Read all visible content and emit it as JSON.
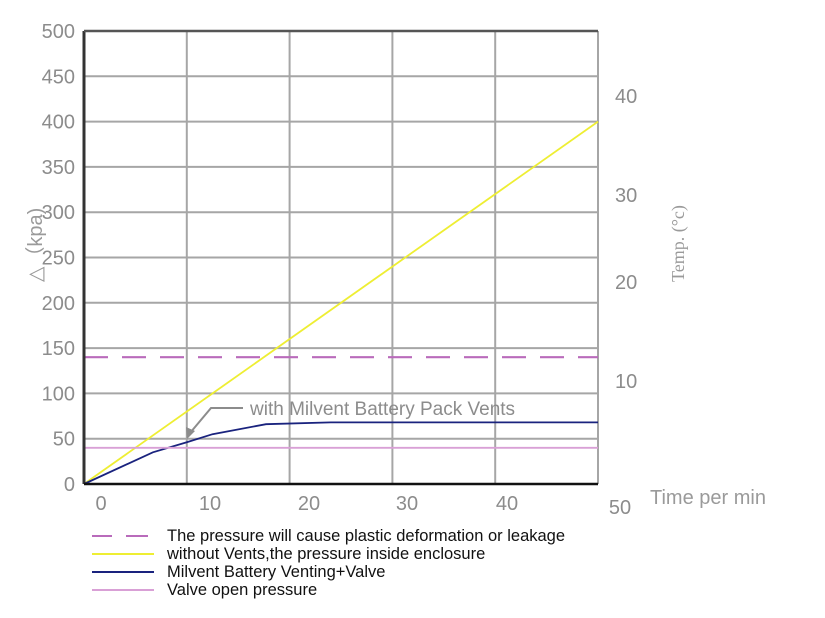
{
  "chart_data": {
    "type": "line",
    "title": "",
    "xlabel": "Time per min",
    "ylabel": "△（kpa)",
    "y2label": "Temp. (°c)",
    "xlim": [
      0,
      50
    ],
    "ylim": [
      0,
      500
    ],
    "x_ticks": [
      "0",
      "10",
      "20",
      "30",
      "40",
      "50"
    ],
    "y_ticks": [
      "0",
      "50",
      "100",
      "150",
      "200",
      "250",
      "300",
      "350",
      "400",
      "450",
      "500"
    ],
    "y2_ticks": [
      "10",
      "20",
      "30",
      "40"
    ],
    "grid": true,
    "legend_position": "bottom",
    "series": [
      {
        "name": "The pressure will cause plastic deformation or leakage",
        "style": "dashed",
        "color": "#b96bbb",
        "x": [
          0,
          50
        ],
        "values": [
          140,
          140
        ]
      },
      {
        "name": "without Vents,the pressure inside enclosure",
        "style": "solid",
        "color": "#eeee33",
        "x": [
          0,
          50
        ],
        "values": [
          0,
          400
        ]
      },
      {
        "name": "Milvent Battery Venting+Valve",
        "style": "solid",
        "color": "#1a237e",
        "x": [
          0,
          6.7,
          10,
          12.5,
          17.7,
          24,
          50
        ],
        "values": [
          0,
          35,
          46,
          55,
          66,
          68,
          68
        ]
      },
      {
        "name": "Valve open pressure",
        "style": "solid",
        "color": "#d9a0d6",
        "x": [
          0,
          50
        ],
        "values": [
          40,
          40
        ]
      }
    ],
    "annotations": [
      {
        "text": "with Milvent Battery Pack Vents",
        "x": 10,
        "y": 50,
        "arrow": true
      }
    ]
  },
  "labels": {
    "annotation": "with Milvent Battery Pack Vents",
    "xlabel": "Time per min",
    "ylabel": "△（kpa)",
    "y2label": "Temp. (°c)"
  },
  "colors": {
    "grid": "#a6a6a6",
    "axis": "#333333",
    "tick_text": "#8c8c8c",
    "deform_line": "#b96bbb",
    "no_vent_line": "#eeee33",
    "milvent_line": "#1a237e",
    "valve_line": "#d9a0d6"
  }
}
